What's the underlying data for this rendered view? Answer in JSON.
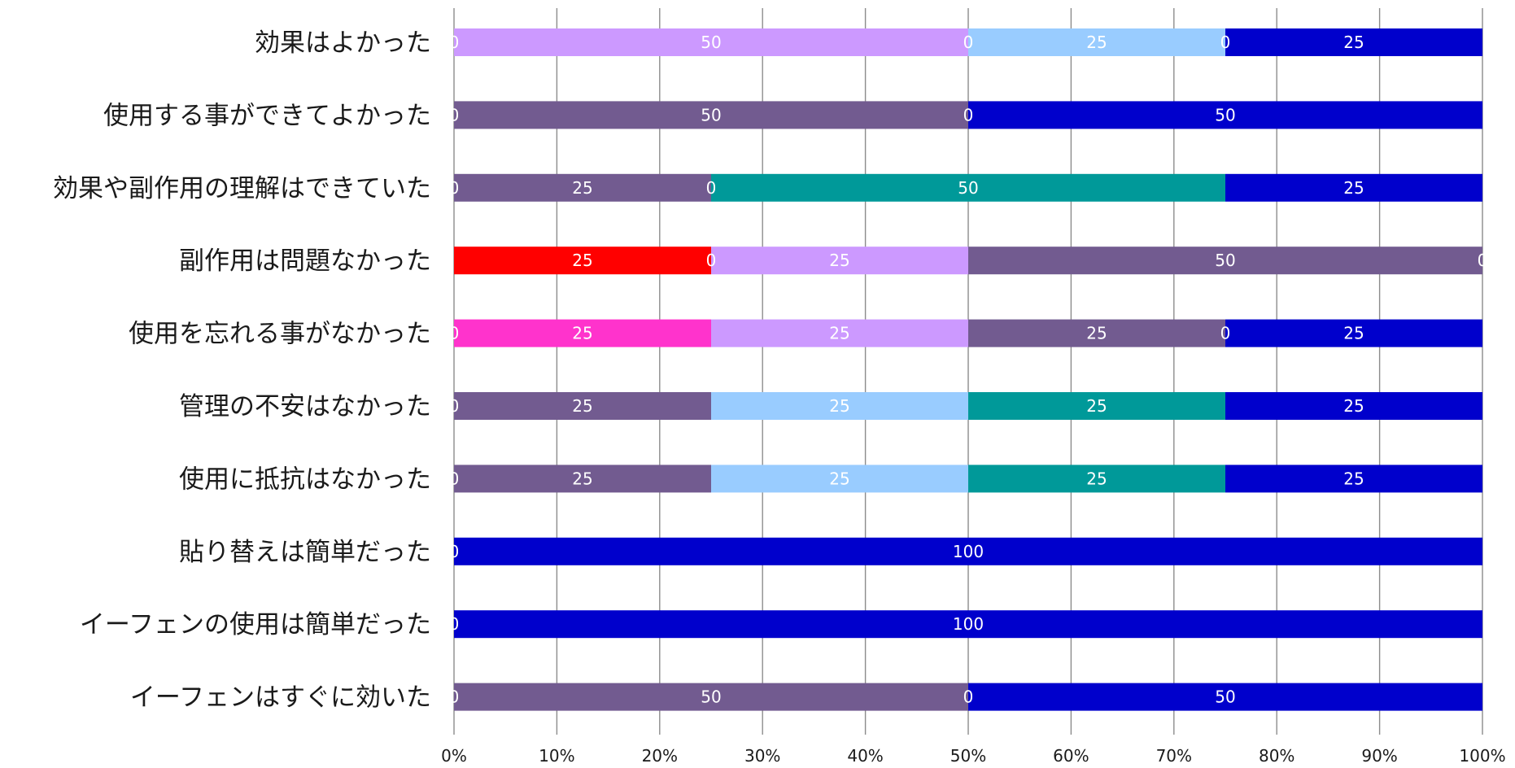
{
  "chart_data": {
    "type": "bar",
    "orientation": "horizontal",
    "stacked": "percent",
    "categories": [
      "効果はよかった",
      "使用する事ができてよかった",
      "効果や副作用の理解はできていた",
      "副作用は問題なかった",
      "使用を忘れる事がなかった",
      "管理の不安はなかった",
      "使用に抵抗はなかった",
      "貼り替えは簡単だった",
      "イーフェンの使用は簡単だった",
      "イーフェンはすぐに効いた"
    ],
    "series": [
      {
        "color": "#ff0000",
        "values": [
          0,
          0,
          0,
          25,
          0,
          0,
          0,
          0,
          0,
          0
        ]
      },
      {
        "color": "#ff33cc",
        "values": [
          0,
          0,
          0,
          0,
          25,
          0,
          0,
          0,
          0,
          0
        ]
      },
      {
        "color": "#cc99ff",
        "values": [
          50,
          0,
          0,
          25,
          25,
          0,
          0,
          0,
          0,
          0
        ]
      },
      {
        "color": "#725b90",
        "values": [
          0,
          50,
          25,
          50,
          25,
          25,
          25,
          0,
          0,
          50
        ]
      },
      {
        "color": "#99ccff",
        "values": [
          25,
          0,
          0,
          0,
          0,
          25,
          25,
          0,
          0,
          0
        ]
      },
      {
        "color": "#009999",
        "values": [
          0,
          0,
          50,
          0,
          0,
          25,
          25,
          0,
          0,
          0
        ]
      },
      {
        "color": "#0000cc",
        "values": [
          25,
          50,
          25,
          0,
          25,
          25,
          25,
          100,
          100,
          50
        ]
      }
    ],
    "data_labels": [
      [
        "0",
        "50",
        "0",
        "25",
        "0",
        "25"
      ],
      [
        "0",
        "50",
        "0",
        "50"
      ],
      [
        "0",
        "25",
        "0",
        "50",
        "25"
      ],
      [
        "25",
        "0",
        "25",
        "50",
        "0"
      ],
      [
        "0",
        "25",
        "25",
        "25",
        "0",
        "25"
      ],
      [
        "0",
        "25",
        "25",
        "25",
        "25"
      ],
      [
        "0",
        "25",
        "25",
        "25",
        "25"
      ],
      [
        "0",
        "100"
      ],
      [
        "0",
        "100"
      ],
      [
        "0",
        "50",
        "0",
        "50"
      ]
    ],
    "x_ticks": [
      "0%",
      "10%",
      "20%",
      "30%",
      "40%",
      "50%",
      "60%",
      "70%",
      "80%",
      "90%",
      "100%"
    ],
    "xlim": [
      0,
      100
    ],
    "title": "",
    "xlabel": "",
    "ylabel": "",
    "grid": "vertical",
    "legend": "none"
  }
}
